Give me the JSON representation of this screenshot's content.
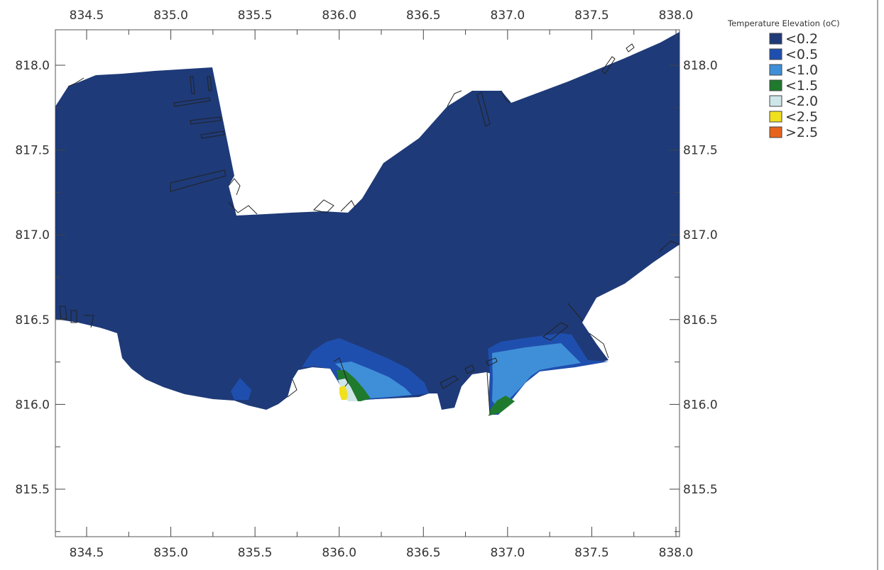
{
  "map": {
    "x_ticks": [
      "834.5",
      "835.0",
      "835.5",
      "836.0",
      "836.5",
      "837.0",
      "837.5",
      "838.0"
    ],
    "y_ticks": [
      "818.0",
      "817.5",
      "817.0",
      "816.5",
      "816.0",
      "815.5"
    ],
    "legend": {
      "title": "Temperature Elevation (oC)",
      "items": [
        {
          "label": "<0.2",
          "color": "#1e3a78"
        },
        {
          "label": "<0.5",
          "color": "#1f4fae"
        },
        {
          "label": "<1.0",
          "color": "#3f8fd8"
        },
        {
          "label": "<1.5",
          "color": "#1f7a2e"
        },
        {
          "label": "<2.0",
          "color": "#cfe6e8"
        },
        {
          "label": "<2.5",
          "color": "#f1e01e"
        },
        {
          "label": ">2.5",
          "color": "#e8641c"
        }
      ]
    }
  }
}
